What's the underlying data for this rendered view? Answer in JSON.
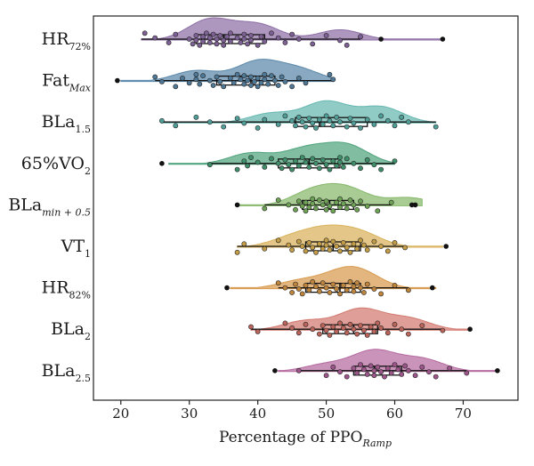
{
  "chart_data": {
    "type": "raincloud",
    "title": "",
    "xlabel": {
      "main": "Percentage of PPO",
      "sub": "Ramp"
    },
    "xlim": [
      16,
      78
    ],
    "xticks": [
      20,
      30,
      40,
      50,
      60,
      70
    ],
    "grid": false,
    "legend": "none",
    "series": [
      {
        "name": "HR72%",
        "label_main": "HR",
        "label_sub": "72%",
        "sub_italic": false,
        "color": "#8e6fa6",
        "point_color": "#7d6094",
        "stats": {
          "min": 23,
          "q1": 31,
          "median": 35,
          "q3": 41,
          "max": 55
        },
        "outliers": [
          58,
          67
        ],
        "density_peaks": [
          [
            33,
            1.0
          ],
          [
            40,
            0.75
          ],
          [
            52,
            0.5
          ]
        ],
        "density_range": [
          23,
          67
        ],
        "values": [
          23.5,
          25,
          27,
          28,
          30,
          30.5,
          31,
          31,
          31.5,
          32,
          32,
          32.5,
          33,
          33,
          33.5,
          34,
          34,
          34.5,
          35,
          35,
          35.5,
          36,
          36,
          37,
          37.5,
          38,
          38,
          38.5,
          39,
          39,
          40,
          40.5,
          41,
          42,
          43,
          44,
          45,
          46,
          48,
          50,
          52,
          53,
          55
        ]
      },
      {
        "name": "FatMax",
        "label_main": "Fat",
        "label_sub": "Max",
        "sub_italic": true,
        "color": "#5b88aa",
        "point_color": "#4f7896",
        "stats": {
          "min": 25,
          "q1": 34,
          "median": 39,
          "q3": 42.5,
          "max": 51
        },
        "outliers": [
          19.5
        ],
        "density_peaks": [
          [
            31,
            0.55
          ],
          [
            40,
            1.0
          ],
          [
            46,
            0.6
          ]
        ],
        "density_range": [
          20,
          51
        ],
        "values": [
          25,
          26,
          28,
          29,
          30,
          31,
          31,
          31.5,
          32,
          33,
          33.5,
          34,
          34.5,
          35,
          36,
          36.5,
          37,
          37.5,
          38,
          38,
          38.5,
          39,
          39,
          39.5,
          40,
          40,
          40.5,
          41,
          41,
          41.5,
          42,
          42.5,
          43,
          43.5,
          44,
          45,
          46,
          47,
          50.5,
          51
        ]
      },
      {
        "name": "BLa1.5",
        "label_main": "BLa",
        "label_sub": "1.5",
        "sub_italic": false,
        "color": "#66b7b0",
        "point_color": "#4f9f98",
        "stats": {
          "min": 26,
          "q1": 45.5,
          "median": 49,
          "q3": 56,
          "max": 66
        },
        "outliers": [],
        "density_peaks": [
          [
            42,
            0.45
          ],
          [
            50,
            1.0
          ],
          [
            58,
            0.75
          ]
        ],
        "density_range": [
          26,
          66
        ],
        "values": [
          26,
          28,
          31,
          33,
          35,
          37,
          38,
          40,
          41,
          43,
          44,
          45,
          45.5,
          46,
          46.5,
          47,
          47.5,
          48,
          48.5,
          49,
          49.5,
          50,
          50.5,
          51,
          51.5,
          52,
          53,
          53.5,
          54,
          55,
          56,
          57,
          58,
          59,
          60,
          61,
          62,
          66
        ]
      },
      {
        "name": "65%VO2",
        "label_main": "65%VO",
        "label_sub": "2",
        "sub_italic": false,
        "color": "#4fa37d",
        "point_color": "#3f8f6b",
        "stats": {
          "min": 33,
          "q1": 43,
          "median": 47.5,
          "q3": 52,
          "max": 60
        },
        "outliers": [
          26
        ],
        "density_peaks": [
          [
            39,
            0.6
          ],
          [
            47,
            0.8
          ],
          [
            53,
            1.0
          ]
        ],
        "density_range": [
          27,
          60
        ],
        "values": [
          33,
          37,
          38,
          38.5,
          39,
          40,
          41,
          42,
          43,
          43.5,
          44,
          44.5,
          45,
          45.5,
          46,
          46.5,
          47,
          47.5,
          48,
          48.5,
          49,
          49.5,
          50,
          50.5,
          51,
          51.5,
          52,
          52,
          52.5,
          53,
          54,
          55,
          56,
          57,
          58,
          60
        ]
      },
      {
        "name": "BLamin+0.5",
        "label_main": "BLa",
        "label_sub": "min + 0.5",
        "sub_italic": true,
        "color": "#86b86a",
        "point_color": "#6ea356",
        "stats": {
          "min": 41,
          "q1": 46.5,
          "median": 50.5,
          "q3": 54,
          "max": 59.5
        },
        "outliers": [
          37,
          62.5,
          63
        ],
        "density_peaks": [
          [
            48,
            0.85
          ],
          [
            53,
            1.0
          ],
          [
            62,
            0.5
          ]
        ],
        "density_range": [
          37,
          64
        ],
        "values": [
          41,
          43,
          44.5,
          45.5,
          46,
          46.5,
          47,
          47,
          47.5,
          48,
          48,
          48.5,
          49,
          49.5,
          50,
          50,
          50.5,
          51,
          51.5,
          52,
          52,
          52.5,
          53,
          53.5,
          54,
          54.5,
          55,
          56,
          57.5,
          59.5
        ]
      },
      {
        "name": "VT1",
        "label_main": "VT",
        "label_sub": "1",
        "sub_italic": false,
        "color": "#d9b25a",
        "point_color": "#c29c46",
        "stats": {
          "min": 37,
          "q1": 47,
          "median": 51,
          "q3": 55,
          "max": 61.5
        },
        "outliers": [
          67.5
        ],
        "density_peaks": [
          [
            45,
            0.6
          ],
          [
            50,
            1.0
          ],
          [
            55,
            0.85
          ]
        ],
        "density_range": [
          37,
          67
        ],
        "values": [
          37,
          38,
          41,
          43,
          44.5,
          45,
          46,
          46.5,
          47,
          47.5,
          48,
          48.5,
          49,
          49.5,
          50,
          50,
          50.5,
          51,
          51.5,
          52,
          52.5,
          53,
          53.5,
          54,
          54.5,
          55,
          55.5,
          56,
          57,
          58,
          59,
          60,
          61.5
        ]
      },
      {
        "name": "HR82%",
        "label_main": "HR",
        "label_sub": "82%",
        "sub_italic": false,
        "color": "#d89a4e",
        "point_color": "#c0853c",
        "stats": {
          "min": 43,
          "q1": 47,
          "median": 52,
          "q3": 55,
          "max": 62
        },
        "outliers": [
          35.5,
          65.5
        ],
        "density_peaks": [
          [
            46,
            0.55
          ],
          [
            52,
            0.8
          ],
          [
            55,
            1.0
          ]
        ],
        "density_range": [
          36,
          66
        ],
        "values": [
          43,
          44,
          45,
          45.5,
          46,
          46.5,
          47,
          47.5,
          48,
          48.5,
          49,
          49.5,
          50,
          50.5,
          51,
          51.5,
          52,
          52.5,
          53,
          53.5,
          54,
          54,
          54.5,
          55,
          55.5,
          56,
          57,
          58,
          60,
          62
        ]
      },
      {
        "name": "BLa2",
        "label_main": "BLa",
        "label_sub": "2",
        "sub_italic": false,
        "color": "#d2796f",
        "point_color": "#bb645b",
        "stats": {
          "min": 39,
          "q1": 49.5,
          "median": 54,
          "q3": 57.5,
          "max": 67
        },
        "outliers": [
          71
        ],
        "density_peaks": [
          [
            47,
            0.45
          ],
          [
            55,
            1.0
          ],
          [
            62,
            0.55
          ]
        ],
        "density_range": [
          39,
          71
        ],
        "values": [
          39,
          40,
          44,
          45,
          46,
          47,
          48,
          49,
          49.5,
          50,
          50.5,
          51,
          51.5,
          52,
          52.5,
          53,
          53.5,
          54,
          54.5,
          55,
          55.5,
          56,
          56.5,
          57,
          57.5,
          58,
          59,
          60,
          61,
          62,
          64,
          67
        ]
      },
      {
        "name": "BLa2.5",
        "label_main": "BLa",
        "label_sub": "2.5",
        "sub_italic": false,
        "color": "#b56aa0",
        "point_color": "#9d568a",
        "stats": {
          "min": 46,
          "q1": 54,
          "median": 57,
          "q3": 61,
          "max": 70.5
        },
        "outliers": [
          42.5,
          75
        ],
        "density_peaks": [
          [
            50,
            0.35
          ],
          [
            57,
            1.0
          ],
          [
            64,
            0.6
          ]
        ],
        "density_range": [
          43,
          75
        ],
        "values": [
          46,
          50,
          51,
          52,
          53,
          54,
          54.5,
          55,
          55.5,
          56,
          56.5,
          57,
          57,
          57.5,
          58,
          58.5,
          59,
          59.5,
          60,
          60.5,
          61,
          61.5,
          62,
          63,
          64,
          65,
          66,
          68,
          70.5
        ]
      }
    ]
  }
}
